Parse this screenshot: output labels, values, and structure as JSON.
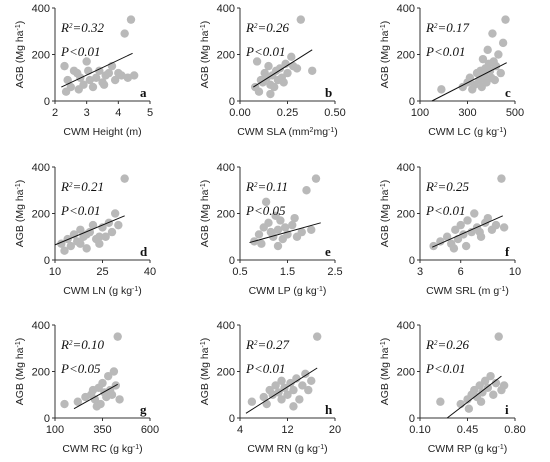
{
  "chart_data": [
    {
      "type": "scatter",
      "letter": "a",
      "r2": "R2=0.32",
      "p": "P<0.01",
      "xlabel": "CWM Height (m)",
      "ylabel": "AGB (Mg ha-1)",
      "xlim": [
        2,
        5
      ],
      "ylim": [
        0,
        400
      ],
      "xticks": [
        2,
        3,
        4,
        5
      ],
      "yticks": [
        0,
        200,
        400
      ],
      "points": [
        [
          2.3,
          150
        ],
        [
          2.4,
          90
        ],
        [
          2.5,
          60
        ],
        [
          2.6,
          130
        ],
        [
          2.7,
          120
        ],
        [
          2.8,
          100
        ],
        [
          2.9,
          70
        ],
        [
          3.0,
          170
        ],
        [
          3.1,
          90
        ],
        [
          3.2,
          60
        ],
        [
          3.3,
          100
        ],
        [
          3.4,
          130
        ],
        [
          3.5,
          80
        ],
        [
          3.6,
          110
        ],
        [
          3.7,
          120
        ],
        [
          3.8,
          150
        ],
        [
          3.9,
          90
        ],
        [
          4.0,
          120
        ],
        [
          4.1,
          110
        ],
        [
          4.2,
          290
        ],
        [
          4.3,
          100
        ],
        [
          4.4,
          350
        ],
        [
          4.5,
          110
        ],
        [
          2.35,
          40
        ],
        [
          3.05,
          130
        ],
        [
          3.55,
          70
        ],
        [
          2.75,
          50
        ]
      ],
      "fit": [
        [
          2.2,
          60
        ],
        [
          4.45,
          205
        ]
      ]
    },
    {
      "type": "scatter",
      "letter": "b",
      "r2": "R2=0.26",
      "p": "P<0.01",
      "xlabel": "CWM SLA (mm2mg-1)",
      "ylabel": "AGB (Mg ha-1)",
      "xlim": [
        0,
        0.5
      ],
      "ylim": [
        0,
        400
      ],
      "xticks": [
        0,
        0.25,
        0.5
      ],
      "xtick_labels": [
        "0.00",
        "0.25",
        "0.50"
      ],
      "yticks": [
        0,
        200,
        400
      ],
      "points": [
        [
          0.08,
          60
        ],
        [
          0.1,
          40
        ],
        [
          0.12,
          80
        ],
        [
          0.13,
          120
        ],
        [
          0.14,
          100
        ],
        [
          0.15,
          150
        ],
        [
          0.16,
          70
        ],
        [
          0.17,
          110
        ],
        [
          0.18,
          60
        ],
        [
          0.19,
          130
        ],
        [
          0.2,
          90
        ],
        [
          0.21,
          140
        ],
        [
          0.22,
          100
        ],
        [
          0.23,
          80
        ],
        [
          0.24,
          160
        ],
        [
          0.25,
          120
        ],
        [
          0.27,
          190
        ],
        [
          0.28,
          150
        ],
        [
          0.3,
          140
        ],
        [
          0.32,
          350
        ],
        [
          0.38,
          130
        ],
        [
          0.09,
          170
        ],
        [
          0.11,
          90
        ],
        [
          0.16,
          30
        ]
      ],
      "fit": [
        [
          0.07,
          60
        ],
        [
          0.38,
          220
        ]
      ]
    },
    {
      "type": "scatter",
      "letter": "c",
      "r2": "R2=0.17",
      "p": "P<0.01",
      "xlabel": "CWM LC (g kg-1)",
      "ylabel": "AGB (Mg ha-1)",
      "xlim": [
        100,
        500
      ],
      "ylim": [
        0,
        400
      ],
      "xticks": [
        100,
        300,
        500
      ],
      "yticks": [
        0,
        200,
        400
      ],
      "points": [
        [
          190,
          50
        ],
        [
          280,
          60
        ],
        [
          300,
          80
        ],
        [
          310,
          100
        ],
        [
          320,
          50
        ],
        [
          330,
          70
        ],
        [
          340,
          120
        ],
        [
          350,
          90
        ],
        [
          360,
          60
        ],
        [
          365,
          180
        ],
        [
          370,
          110
        ],
        [
          375,
          140
        ],
        [
          380,
          80
        ],
        [
          385,
          220
        ],
        [
          390,
          160
        ],
        [
          395,
          130
        ],
        [
          400,
          100
        ],
        [
          405,
          290
        ],
        [
          410,
          170
        ],
        [
          420,
          150
        ],
        [
          430,
          200
        ],
        [
          440,
          120
        ],
        [
          450,
          250
        ],
        [
          460,
          350
        ],
        [
          415,
          90
        ],
        [
          355,
          130
        ]
      ],
      "fit": [
        [
          150,
          0
        ],
        [
          465,
          165
        ]
      ]
    },
    {
      "type": "scatter",
      "letter": "d",
      "r2": "R2=0.21",
      "p": "P<0.01",
      "xlabel": "CWM LN (g kg-1)",
      "ylabel": "AGB (Mg ha-1)",
      "xlim": [
        10,
        40
      ],
      "ylim": [
        0,
        400
      ],
      "xticks": [
        10,
        25,
        40
      ],
      "yticks": [
        0,
        200,
        400
      ],
      "points": [
        [
          12,
          70
        ],
        [
          14,
          90
        ],
        [
          15,
          60
        ],
        [
          16,
          110
        ],
        [
          17,
          80
        ],
        [
          18,
          130
        ],
        [
          19,
          100
        ],
        [
          20,
          50
        ],
        [
          21,
          120
        ],
        [
          22,
          150
        ],
        [
          23,
          90
        ],
        [
          24,
          70
        ],
        [
          25,
          140
        ],
        [
          26,
          100
        ],
        [
          27,
          160
        ],
        [
          28,
          120
        ],
        [
          30,
          150
        ],
        [
          32,
          350
        ],
        [
          29,
          200
        ],
        [
          13,
          40
        ],
        [
          20,
          110
        ],
        [
          18,
          70
        ],
        [
          24,
          100
        ]
      ],
      "fit": [
        [
          10,
          65
        ],
        [
          32,
          190
        ]
      ]
    },
    {
      "type": "scatter",
      "letter": "e",
      "r2": "R2=0.11",
      "p": "P<0.05",
      "xlabel": "CWM LP (g kg-1)",
      "ylabel": "AGB (Mg ha-1)",
      "xlim": [
        0.5,
        2.5
      ],
      "ylim": [
        0,
        400
      ],
      "xticks": [
        0.5,
        1.5,
        2.5
      ],
      "yticks": [
        0,
        200,
        400
      ],
      "points": [
        [
          0.8,
          80
        ],
        [
          0.9,
          110
        ],
        [
          1.0,
          140
        ],
        [
          1.05,
          250
        ],
        [
          1.1,
          160
        ],
        [
          1.15,
          120
        ],
        [
          1.2,
          100
        ],
        [
          1.25,
          190
        ],
        [
          1.3,
          130
        ],
        [
          1.35,
          170
        ],
        [
          1.4,
          90
        ],
        [
          1.45,
          140
        ],
        [
          1.5,
          110
        ],
        [
          1.6,
          150
        ],
        [
          1.7,
          100
        ],
        [
          1.8,
          120
        ],
        [
          1.9,
          300
        ],
        [
          2.1,
          350
        ],
        [
          2.0,
          130
        ],
        [
          1.3,
          60
        ],
        [
          0.95,
          70
        ],
        [
          1.65,
          180
        ]
      ],
      "fit": [
        [
          0.7,
          75
        ],
        [
          2.2,
          160
        ]
      ]
    },
    {
      "type": "scatter",
      "letter": "f",
      "r2": "R2=0.25",
      "p": "P<0.01",
      "xlabel": "CWM SRL (m g-1)",
      "ylabel": "AGB (Mg ha-1)",
      "xlim": [
        3,
        10
      ],
      "ylim": [
        0,
        400
      ],
      "xticks": [
        3,
        6,
        10
      ],
      "yticks": [
        0,
        200,
        400
      ],
      "points": [
        [
          4,
          60
        ],
        [
          4.5,
          80
        ],
        [
          5,
          100
        ],
        [
          5.3,
          70
        ],
        [
          5.6,
          130
        ],
        [
          5.8,
          90
        ],
        [
          6,
          150
        ],
        [
          6.2,
          110
        ],
        [
          6.5,
          170
        ],
        [
          6.8,
          120
        ],
        [
          7,
          200
        ],
        [
          7.2,
          140
        ],
        [
          7.5,
          100
        ],
        [
          7.8,
          160
        ],
        [
          8,
          180
        ],
        [
          8.3,
          130
        ],
        [
          8.6,
          150
        ],
        [
          9,
          350
        ],
        [
          9.2,
          140
        ],
        [
          6.4,
          60
        ],
        [
          5.5,
          50
        ],
        [
          7.4,
          120
        ]
      ],
      "fit": [
        [
          3.9,
          55
        ],
        [
          9.1,
          190
        ]
      ]
    },
    {
      "type": "scatter",
      "letter": "g",
      "r2": "R2=0.10",
      "p": "P<0.05",
      "xlabel": "CWM RC (g kg-1)",
      "ylabel": "AGB (Mg ha-1)",
      "xlim": [
        100,
        600
      ],
      "ylim": [
        0,
        400
      ],
      "xticks": [
        100,
        350,
        600
      ],
      "yticks": [
        0,
        200,
        400
      ],
      "points": [
        [
          150,
          60
        ],
        [
          220,
          70
        ],
        [
          260,
          90
        ],
        [
          290,
          100
        ],
        [
          310,
          80
        ],
        [
          330,
          130
        ],
        [
          340,
          60
        ],
        [
          350,
          150
        ],
        [
          360,
          110
        ],
        [
          370,
          90
        ],
        [
          380,
          180
        ],
        [
          390,
          120
        ],
        [
          400,
          100
        ],
        [
          410,
          200
        ],
        [
          420,
          140
        ],
        [
          430,
          350
        ],
        [
          440,
          80
        ],
        [
          320,
          50
        ],
        [
          300,
          120
        ]
      ],
      "fit": [
        [
          200,
          40
        ],
        [
          430,
          145
        ]
      ]
    },
    {
      "type": "scatter",
      "letter": "h",
      "r2": "R2=0.27",
      "p": "P<0.01",
      "xlabel": "CWM RN (g kg-1)",
      "ylabel": "AGB (Mg ha-1)",
      "xlim": [
        4,
        20
      ],
      "ylim": [
        0,
        400
      ],
      "xticks": [
        4,
        12,
        20
      ],
      "yticks": [
        0,
        200,
        400
      ],
      "points": [
        [
          6,
          70
        ],
        [
          8,
          90
        ],
        [
          9,
          120
        ],
        [
          9.5,
          100
        ],
        [
          10,
          140
        ],
        [
          10.5,
          110
        ],
        [
          11,
          160
        ],
        [
          11.5,
          130
        ],
        [
          12,
          100
        ],
        [
          12.5,
          150
        ],
        [
          13,
          120
        ],
        [
          13.5,
          170
        ],
        [
          14,
          80
        ],
        [
          14.5,
          140
        ],
        [
          15,
          190
        ],
        [
          16,
          160
        ],
        [
          17,
          350
        ],
        [
          8.5,
          60
        ],
        [
          11,
          80
        ],
        [
          13,
          50
        ],
        [
          15.5,
          120
        ]
      ],
      "fit": [
        [
          5,
          20
        ],
        [
          17,
          215
        ]
      ]
    },
    {
      "type": "scatter",
      "letter": "i",
      "r2": "R2=0.26",
      "p": "P<0.01",
      "xlabel": "CWM RP (g kg-1)",
      "ylabel": "AGB (Mg ha-1)",
      "xlim": [
        0.1,
        0.8
      ],
      "ylim": [
        0,
        400
      ],
      "xticks": [
        0.1,
        0.45,
        0.8
      ],
      "xtick_labels": [
        "0.10",
        "0.45",
        "0.80"
      ],
      "yticks": [
        0,
        200,
        400
      ],
      "points": [
        [
          0.25,
          70
        ],
        [
          0.4,
          60
        ],
        [
          0.45,
          80
        ],
        [
          0.48,
          100
        ],
        [
          0.5,
          120
        ],
        [
          0.52,
          90
        ],
        [
          0.54,
          140
        ],
        [
          0.56,
          110
        ],
        [
          0.58,
          160
        ],
        [
          0.6,
          130
        ],
        [
          0.62,
          180
        ],
        [
          0.64,
          100
        ],
        [
          0.66,
          150
        ],
        [
          0.68,
          350
        ],
        [
          0.7,
          120
        ],
        [
          0.72,
          140
        ],
        [
          0.55,
          70
        ],
        [
          0.46,
          40
        ]
      ],
      "fit": [
        [
          0.3,
          0
        ],
        [
          0.7,
          180
        ]
      ]
    }
  ]
}
